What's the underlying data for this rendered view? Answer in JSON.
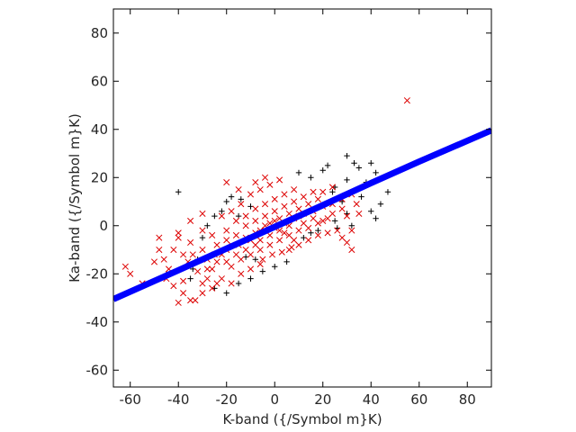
{
  "chart_data": {
    "type": "scatter",
    "title": "",
    "xlabel": "K-band ({/Symbol m}K)",
    "ylabel": "Ka-band ({/Symbol m}K)",
    "xlim": [
      -67,
      90
    ],
    "ylim": [
      -67,
      90
    ],
    "xticks": [
      -60,
      -40,
      -20,
      0,
      20,
      40,
      60,
      80
    ],
    "yticks": [
      -60,
      -40,
      -20,
      0,
      20,
      40,
      60,
      80
    ],
    "grid": false,
    "legend": "none",
    "colors": {
      "black": "#000000",
      "red": "#dd0000",
      "blue": "#0000ff"
    },
    "series": [
      {
        "marker": "+",
        "color": "#000000",
        "points": [
          [
            -40,
            14
          ],
          [
            -20,
            -28
          ],
          [
            -15,
            -24
          ],
          [
            -25,
            -26
          ],
          [
            -35,
            -22
          ],
          [
            30,
            29
          ],
          [
            33,
            26
          ],
          [
            40,
            26
          ],
          [
            42,
            22
          ],
          [
            45,
            20
          ],
          [
            47,
            14
          ],
          [
            44,
            9
          ],
          [
            40,
            6
          ],
          [
            42,
            3
          ],
          [
            35,
            24
          ],
          [
            22,
            25
          ],
          [
            15,
            20
          ],
          [
            10,
            22
          ],
          [
            25,
            16
          ],
          [
            28,
            10
          ],
          [
            36,
            12
          ],
          [
            38,
            18
          ],
          [
            20,
            23
          ],
          [
            -10,
            -22
          ],
          [
            -5,
            -19
          ],
          [
            0,
            -17
          ],
          [
            5,
            -15
          ],
          [
            -30,
            -5
          ],
          [
            -28,
            0
          ],
          [
            -25,
            4
          ],
          [
            -22,
            6
          ],
          [
            -20,
            10
          ],
          [
            -18,
            12
          ],
          [
            -14,
            11
          ],
          [
            -15,
            4
          ],
          [
            -10,
            8
          ],
          [
            12,
            -5
          ],
          [
            15,
            -3
          ],
          [
            18,
            -2
          ],
          [
            25,
            2
          ],
          [
            30,
            5
          ],
          [
            32,
            0
          ],
          [
            26,
            -1
          ],
          [
            -8,
            -14
          ],
          [
            -32,
            -14
          ],
          [
            -34,
            -18
          ],
          [
            -12,
            -13
          ],
          [
            -45,
            -20
          ],
          [
            30,
            19
          ],
          [
            24,
            14
          ]
        ]
      },
      {
        "marker": "x",
        "color": "#dd0000",
        "points": [
          [
            55,
            52
          ],
          [
            -62,
            -17
          ],
          [
            -60,
            -20
          ],
          [
            -55,
            -24
          ],
          [
            -40,
            -32
          ],
          [
            -35,
            -31
          ],
          [
            -33,
            -31
          ],
          [
            -30,
            -28
          ],
          [
            -45,
            -22
          ],
          [
            -42,
            -25
          ],
          [
            -38,
            -23
          ],
          [
            -50,
            -15
          ],
          [
            -48,
            -10
          ],
          [
            -40,
            -5
          ],
          [
            -35,
            -7
          ],
          [
            -30,
            -10
          ],
          [
            -25,
            -12
          ],
          [
            -20,
            -15
          ],
          [
            -15,
            -8
          ],
          [
            -12,
            -5
          ],
          [
            -8,
            -3
          ],
          [
            -4,
            -2
          ],
          [
            0,
            -1
          ],
          [
            4,
            1
          ],
          [
            8,
            3
          ],
          [
            12,
            5
          ],
          [
            16,
            6
          ],
          [
            20,
            8
          ],
          [
            24,
            9
          ],
          [
            28,
            11
          ],
          [
            32,
            13
          ],
          [
            -22,
            -22
          ],
          [
            -18,
            -17
          ],
          [
            -10,
            -12
          ],
          [
            -6,
            -10
          ],
          [
            -2,
            -8
          ],
          [
            2,
            -6
          ],
          [
            6,
            -4
          ],
          [
            10,
            -2
          ],
          [
            14,
            -1
          ],
          [
            18,
            1
          ],
          [
            22,
            3
          ],
          [
            -26,
            -18
          ],
          [
            -28,
            -14
          ],
          [
            -24,
            -8
          ],
          [
            -20,
            -6
          ],
          [
            -16,
            -4
          ],
          [
            -12,
            0
          ],
          [
            -8,
            2
          ],
          [
            -4,
            4
          ],
          [
            0,
            6
          ],
          [
            4,
            8
          ],
          [
            8,
            10
          ],
          [
            12,
            12
          ],
          [
            16,
            14
          ],
          [
            -20,
            -2
          ],
          [
            -16,
            2
          ],
          [
            -12,
            4
          ],
          [
            -8,
            7
          ],
          [
            -4,
            9
          ],
          [
            0,
            11
          ],
          [
            4,
            13
          ],
          [
            8,
            15
          ],
          [
            -22,
            4
          ],
          [
            -18,
            6
          ],
          [
            -14,
            9
          ],
          [
            -10,
            13
          ],
          [
            -6,
            15
          ],
          [
            -2,
            17
          ],
          [
            2,
            19
          ],
          [
            -30,
            -2
          ],
          [
            -26,
            -4
          ],
          [
            6,
            -10
          ],
          [
            10,
            -8
          ],
          [
            14,
            -6
          ],
          [
            18,
            -4
          ],
          [
            22,
            -3
          ],
          [
            26,
            -2
          ],
          [
            20,
            2
          ],
          [
            24,
            5
          ],
          [
            28,
            7
          ],
          [
            30,
            4
          ],
          [
            30,
            -7
          ],
          [
            32,
            -2
          ],
          [
            35,
            5
          ],
          [
            34,
            9
          ],
          [
            -5,
            -14
          ],
          [
            -1,
            -12
          ],
          [
            3,
            -11
          ],
          [
            7,
            -9
          ],
          [
            -36,
            -15
          ],
          [
            -34,
            -12
          ],
          [
            -32,
            -19
          ],
          [
            -28,
            -22
          ],
          [
            -24,
            -24
          ],
          [
            -44,
            -18
          ],
          [
            -46,
            -14
          ],
          [
            -38,
            -12
          ],
          [
            -10,
            -18
          ],
          [
            -14,
            -20
          ],
          [
            -6,
            -16
          ],
          [
            28,
            -5
          ],
          [
            32,
            -10
          ],
          [
            -8,
            18
          ],
          [
            -4,
            20
          ],
          [
            -15,
            15
          ],
          [
            -20,
            18
          ],
          [
            -30,
            5
          ],
          [
            -35,
            2
          ],
          [
            -40,
            -3
          ],
          [
            -48,
            -5
          ],
          [
            -42,
            -10
          ],
          [
            -10,
            -6
          ],
          [
            -6,
            -2
          ],
          [
            -2,
            1
          ],
          [
            2,
            3
          ],
          [
            6,
            5
          ],
          [
            10,
            7
          ],
          [
            14,
            9
          ],
          [
            18,
            11
          ],
          [
            -12,
            -10
          ],
          [
            -16,
            -12
          ],
          [
            -20,
            -10
          ],
          [
            -24,
            -15
          ],
          [
            20,
            14
          ],
          [
            24,
            16
          ],
          [
            -26,
            -26
          ],
          [
            -30,
            -24
          ],
          [
            0,
            2
          ],
          [
            2,
            -2
          ],
          [
            -2,
            -4
          ],
          [
            4,
            -3
          ],
          [
            -4,
            0
          ],
          [
            6,
            0
          ],
          [
            -6,
            -6
          ],
          [
            8,
            -6
          ],
          [
            -8,
            -8
          ],
          [
            10,
            4
          ],
          [
            12,
            1
          ],
          [
            -14,
            -14
          ],
          [
            -18,
            -8
          ],
          [
            16,
            3
          ],
          [
            -22,
            -12
          ],
          [
            -38,
            -28
          ],
          [
            -28,
            -18
          ],
          [
            -18,
            -24
          ]
        ]
      },
      {
        "marker": "line",
        "color": "#0000ff",
        "points": [
          [
            -67,
            -30.5
          ],
          [
            -40,
            -18.5
          ],
          [
            -20,
            -9.5
          ],
          [
            0,
            -0.5
          ],
          [
            20,
            8.5
          ],
          [
            40,
            17.7
          ],
          [
            60,
            26.6
          ],
          [
            90,
            39.6
          ]
        ]
      }
    ]
  }
}
